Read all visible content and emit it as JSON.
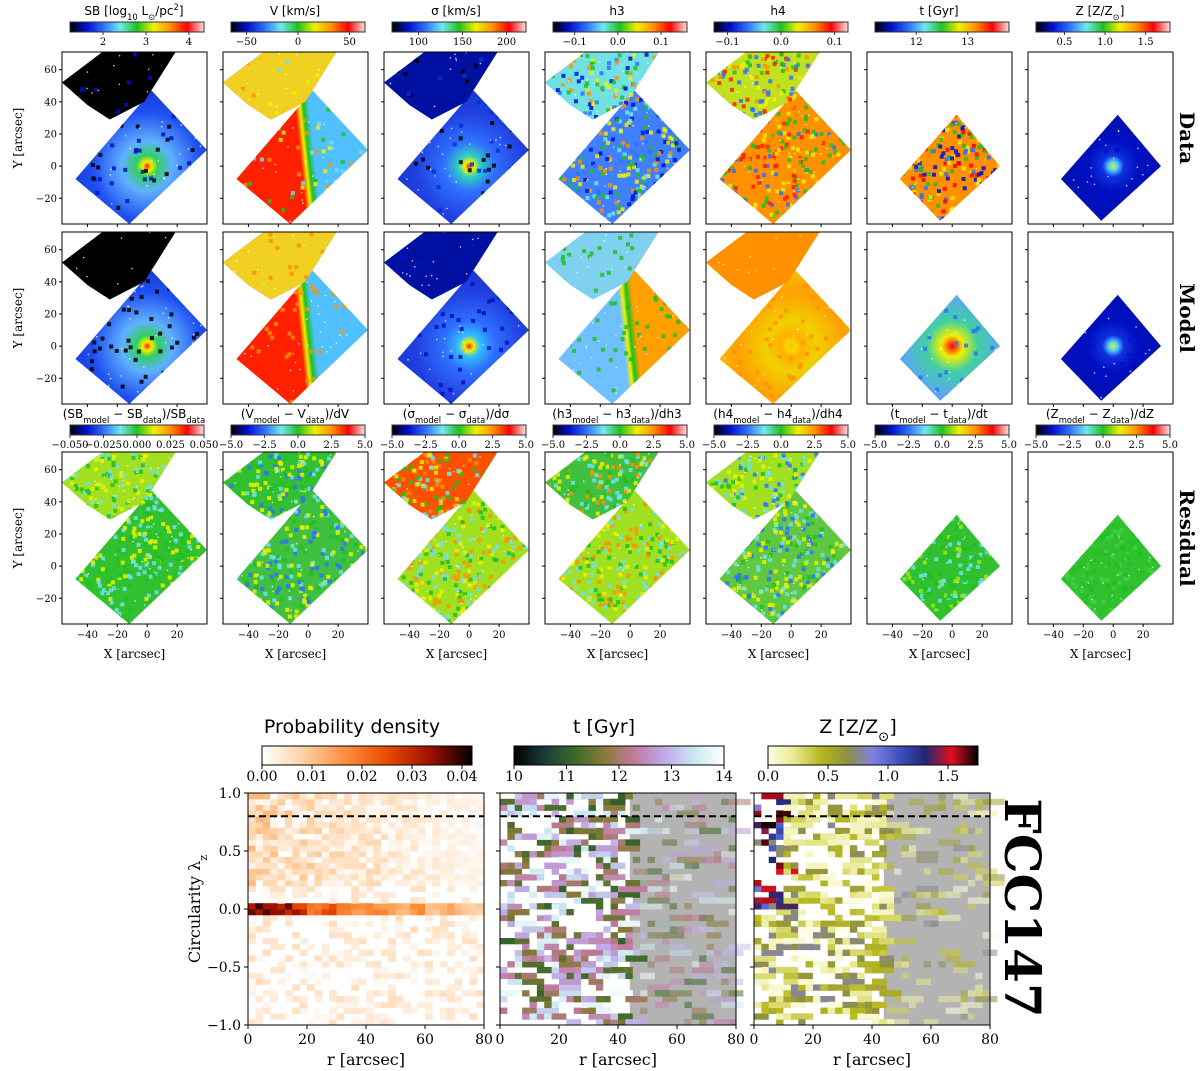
{
  "figure_label": "FCC147",
  "row_labels": [
    "Data",
    "Model",
    "Residual"
  ],
  "map_axes": {
    "xlabel": "X [arcsec]",
    "ylabel": "Y [arcsec]",
    "xticks": [
      -40,
      -20,
      0,
      20
    ],
    "yticks": [
      60,
      40,
      20,
      0,
      -20
    ],
    "xlim": [
      -57,
      40
    ],
    "ylim": [
      -36,
      71
    ]
  },
  "top_colorbars": [
    {
      "title": "SB [log_{10} L_{⊙}/pc^{2}]",
      "range": [
        1.23,
        4.35
      ],
      "ticks": [
        2,
        3,
        4
      ],
      "tick_labels": [
        "2",
        "3",
        "4"
      ]
    },
    {
      "title": "V [km/s]",
      "range": [
        -65,
        65
      ],
      "ticks": [
        -50,
        0,
        50
      ],
      "tick_labels": [
        "−50",
        "0",
        "50"
      ]
    },
    {
      "title": "σ [km/s]",
      "range": [
        70,
        222
      ],
      "ticks": [
        100,
        150,
        200
      ],
      "tick_labels": [
        "100",
        "150",
        "200"
      ]
    },
    {
      "title": "h3",
      "range": [
        -0.15,
        0.16
      ],
      "ticks": [
        -0.1,
        0.0,
        0.1
      ],
      "tick_labels": [
        "−0.1",
        "0.0",
        "0.1"
      ]
    },
    {
      "title": "h4",
      "range": [
        -0.125,
        0.125
      ],
      "ticks": [
        -0.1,
        0.0,
        0.1
      ],
      "tick_labels": [
        "−0.1",
        "0.0",
        "0.1"
      ]
    },
    {
      "title": "t [Gyr]",
      "range": [
        11.2,
        13.8
      ],
      "ticks": [
        12,
        13
      ],
      "tick_labels": [
        "12",
        "13"
      ]
    },
    {
      "title": "Z [Z/Z_{⊙}]",
      "range": [
        0.15,
        1.8
      ],
      "ticks": [
        0.5,
        1.0,
        1.5
      ],
      "tick_labels": [
        "0.5",
        "1.0",
        "1.5"
      ]
    }
  ],
  "residual_colorbars": [
    {
      "title": "(SB_{model} − SB_{data})/SB_{data}",
      "range": [
        -0.05,
        0.05
      ],
      "ticks": [
        -0.05,
        -0.025,
        0,
        0.025,
        0.05
      ],
      "tick_labels": [
        "−0.050",
        "−0.025",
        "0.000",
        "0.025",
        "0.050"
      ]
    },
    {
      "title": "(V_{model} − V_{data})/dV",
      "range": [
        -5,
        5
      ],
      "ticks": [
        -5,
        -2.5,
        0,
        2.5,
        5
      ],
      "tick_labels": [
        "−5.0",
        "−2.5",
        "0.0",
        "2.5",
        "5.0"
      ]
    },
    {
      "title": "(σ_{model} − σ_{data})/dσ",
      "range": [
        -5,
        5
      ],
      "ticks": [
        -5,
        -2.5,
        0,
        2.5,
        5
      ],
      "tick_labels": [
        "−5.0",
        "−2.5",
        "0.0",
        "2.5",
        "5.0"
      ]
    },
    {
      "title": "(h3_{model} − h3_{data})/dh3",
      "range": [
        -5,
        5
      ],
      "ticks": [
        -5,
        -2.5,
        0,
        2.5,
        5
      ],
      "tick_labels": [
        "−5.0",
        "−2.5",
        "0.0",
        "2.5",
        "5.0"
      ]
    },
    {
      "title": "(h4_{model} − h4_{data})/dh4",
      "range": [
        -5,
        5
      ],
      "ticks": [
        -5,
        -2.5,
        0,
        2.5,
        5
      ],
      "tick_labels": [
        "−5.0",
        "−2.5",
        "0.0",
        "2.5",
        "5.0"
      ]
    },
    {
      "title": "(t_{model} − t_{data})/dt",
      "range": [
        -5,
        5
      ],
      "ticks": [
        -5,
        -2.5,
        0,
        2.5,
        5
      ],
      "tick_labels": [
        "−5.0",
        "−2.5",
        "0.0",
        "2.5",
        "5.0"
      ]
    },
    {
      "title": "(Z_{model} − Z_{data})/dZ",
      "range": [
        -5,
        5
      ],
      "ticks": [
        -5,
        -2.5,
        0,
        2.5,
        5
      ],
      "tick_labels": [
        "−5.0",
        "−2.5",
        "0.0",
        "2.5",
        "5.0"
      ]
    }
  ],
  "jet_colors": [
    "#000000",
    "#0010d0",
    "#3070ff",
    "#70e8f0",
    "#20c020",
    "#f0f000",
    "#ff9000",
    "#ff0000",
    "#f8e0e0"
  ],
  "map_styles": [
    [
      {
        "kind": "radial",
        "colors": [
          "#ff2000",
          "#f0f000",
          "#30d060",
          "#60b0ff",
          "#2050f0",
          "#1030d0"
        ],
        "wedge": "#000000",
        "noise": [
          "#000000",
          "#0010c0"
        ],
        "no_wedge": false
      },
      {
        "kind": "split",
        "colors": [
          "#ff2000",
          "#50c0ff"
        ],
        "wedge": "#f0d020",
        "noise": [
          "#f0f000",
          "#ff9000",
          "#70e0f0",
          "#20c020"
        ],
        "no_wedge": false
      },
      {
        "kind": "radial",
        "colors": [
          "#ff2000",
          "#f0f000",
          "#30d0c0",
          "#3070ff",
          "#2040e0",
          "#1030d0"
        ],
        "wedge": "#0010a0",
        "noise": [
          "#000000",
          "#0030e0"
        ],
        "no_wedge": false
      },
      {
        "kind": "noise",
        "colors": [
          "#4080ff"
        ],
        "wedge": "#70e0e0",
        "noise": [
          "#f0f000",
          "#ff9000",
          "#70e8f0",
          "#3070ff",
          "#20c020",
          "#0010d0"
        ],
        "no_wedge": false
      },
      {
        "kind": "noise",
        "colors": [
          "#ff9000"
        ],
        "wedge": "#c0e020",
        "noise": [
          "#f0f000",
          "#ff2000",
          "#ff9000",
          "#20c020",
          "#3070ff"
        ],
        "no_wedge": false
      },
      {
        "kind": "noise",
        "colors": [
          "#ff9000"
        ],
        "wedge": "",
        "noise": [
          "#ff0000",
          "#f0f000",
          "#3070ff",
          "#20c020",
          "#0010d0"
        ],
        "no_wedge": true
      },
      {
        "kind": "radial",
        "colors": [
          "#f0f000",
          "#50d0ff",
          "#1030e0",
          "#0010c0",
          "#0010b0",
          "#0010b0"
        ],
        "wedge": "",
        "noise": [
          "#0010d0"
        ],
        "no_wedge": true
      }
    ],
    [
      {
        "kind": "radial",
        "colors": [
          "#ff2000",
          "#f0f000",
          "#30d060",
          "#60b0ff",
          "#2050f0",
          "#1030d0"
        ],
        "wedge": "#000000",
        "noise": [
          "#000000"
        ],
        "no_wedge": false
      },
      {
        "kind": "split",
        "colors": [
          "#ff2000",
          "#50c0ff"
        ],
        "wedge": "#f0d020",
        "noise": [
          "#ff9000"
        ],
        "no_wedge": false
      },
      {
        "kind": "radial",
        "colors": [
          "#ff2000",
          "#f0f000",
          "#30c0ff",
          "#3070ff",
          "#2040e0",
          "#1030d0"
        ],
        "wedge": "#0010a0",
        "noise": [
          "#0010c0"
        ],
        "no_wedge": false
      },
      {
        "kind": "split",
        "colors": [
          "#70c0ff",
          "#ffa000"
        ],
        "wedge": "#80d0f0",
        "noise": [
          "#20c020"
        ],
        "no_wedge": false
      },
      {
        "kind": "radial",
        "colors": [
          "#ffc000",
          "#f8d800",
          "#ffb000",
          "#f0d000",
          "#ffa000",
          "#f0d000"
        ],
        "wedge": "#ff9000",
        "noise": [
          "#ff9000"
        ],
        "no_wedge": false
      },
      {
        "kind": "radial",
        "colors": [
          "#ff0000",
          "#ff6000",
          "#f0f000",
          "#40d0a0",
          "#60a0ff",
          "#5090ff"
        ],
        "wedge": "",
        "noise": [
          "#3070ff"
        ],
        "no_wedge": true
      },
      {
        "kind": "radial",
        "colors": [
          "#f0f000",
          "#50d0ff",
          "#1030e0",
          "#0010c0",
          "#0010b0",
          "#0010b0"
        ],
        "wedge": "",
        "noise": [
          "#0010d0"
        ],
        "no_wedge": true
      }
    ],
    [
      {
        "kind": "noise",
        "colors": [
          "#30c030"
        ],
        "wedge": "#a0e020",
        "noise": [
          "#f0f000",
          "#70e0f0",
          "#20c020"
        ],
        "no_wedge": false
      },
      {
        "kind": "noise",
        "colors": [
          "#40c040"
        ],
        "wedge": "#30c030",
        "noise": [
          "#f0f000",
          "#70e0f0",
          "#20c020",
          "#3070ff"
        ],
        "no_wedge": false
      },
      {
        "kind": "noise",
        "colors": [
          "#a0e020"
        ],
        "wedge": "#ff5000",
        "noise": [
          "#f0f000",
          "#ff9000",
          "#70e0f0",
          "#20c020"
        ],
        "no_wedge": false
      },
      {
        "kind": "noise",
        "colors": [
          "#a0e020"
        ],
        "wedge": "#40c040",
        "noise": [
          "#f0f000",
          "#ff9000",
          "#70e0f0",
          "#20c020"
        ],
        "no_wedge": false
      },
      {
        "kind": "noise",
        "colors": [
          "#60c840"
        ],
        "wedge": "#a0e020",
        "noise": [
          "#f0f000",
          "#70e0f0",
          "#20c020",
          "#3070ff"
        ],
        "no_wedge": false
      },
      {
        "kind": "noise",
        "colors": [
          "#30c030"
        ],
        "wedge": "",
        "noise": [
          "#70e0f0",
          "#20c020",
          "#a0e020"
        ],
        "no_wedge": true
      },
      {
        "kind": "noise",
        "colors": [
          "#30c030"
        ],
        "wedge": "",
        "noise": [
          "#20c020",
          "#40d040"
        ],
        "no_wedge": true
      }
    ]
  ],
  "chart_data": [
    {
      "type": "heatmap",
      "title": "Probability density",
      "xlabel": "r [arcsec]",
      "ylabel": "Circularity λ_{z}",
      "xlim": [
        0,
        80
      ],
      "ylim": [
        -1,
        1
      ],
      "xticks": [
        0,
        20,
        40,
        60,
        80
      ],
      "xtick_labels": [
        "0",
        "20",
        "40",
        "60",
        "80"
      ],
      "yticks": [
        1.0,
        0.5,
        0.0,
        -0.5,
        -1.0
      ],
      "ytick_labels": [
        "1.0",
        "0.5",
        "0.0",
        "−0.5",
        "−1.0"
      ],
      "colorbar": {
        "range": [
          0,
          0.042
        ],
        "ticks": [
          0,
          0.01,
          0.02,
          0.03,
          0.04
        ],
        "tick_labels": [
          "0.00",
          "0.01",
          "0.02",
          "0.03",
          "0.04"
        ],
        "colors": [
          "#ffffff",
          "#fdd0a2",
          "#fd8d3c",
          "#e64a00",
          "#a01000",
          "#000000"
        ]
      },
      "lambda_zero_row": [
        0.04,
        0.04,
        0.04,
        0.035,
        0.025,
        0.03,
        0.025,
        0.02,
        0.02,
        0.018,
        0.015,
        0.02,
        0.012,
        0.015,
        0.012,
        0.01
      ],
      "dashed_line_lambda": 0.8
    },
    {
      "type": "heatmap",
      "title": "t [Gyr]",
      "xlabel": "r [arcsec]",
      "xlim": [
        0,
        80
      ],
      "ylim": [
        -1,
        1
      ],
      "xticks": [
        0,
        20,
        40,
        60,
        80
      ],
      "xtick_labels": [
        "0",
        "20",
        "40",
        "60",
        "80"
      ],
      "colorbar": {
        "range": [
          10,
          14
        ],
        "ticks": [
          10,
          11,
          12,
          13,
          14
        ],
        "tick_labels": [
          "10",
          "11",
          "12",
          "13",
          "14"
        ],
        "colors": [
          "#000000",
          "#1a3a3a",
          "#3a6a2a",
          "#8a7a3a",
          "#c07a9a",
          "#c0a8e8",
          "#c8e8f0",
          "#ffffff"
        ]
      },
      "masked_r_from": 44,
      "dashed_line_lambda": 0.8
    },
    {
      "type": "heatmap",
      "title": "Z [Z/Z_{⊙}]",
      "xlabel": "r [arcsec]",
      "xlim": [
        0,
        80
      ],
      "ylim": [
        -1,
        1
      ],
      "xticks": [
        0,
        20,
        40,
        60,
        80
      ],
      "xtick_labels": [
        "0",
        "20",
        "40",
        "60",
        "80"
      ],
      "colorbar": {
        "range": [
          0,
          1.75
        ],
        "ticks": [
          0,
          0.5,
          1.0,
          1.5
        ],
        "tick_labels": [
          "0.0",
          "0.5",
          "1.0",
          "1.5"
        ],
        "colors": [
          "#ffffe8",
          "#e8e890",
          "#b8b820",
          "#909040",
          "#8080e0",
          "#4050c0",
          "#202870",
          "#e01020",
          "#000000"
        ]
      },
      "masked_r_from": 44,
      "dashed_line_lambda": 0.8
    }
  ]
}
